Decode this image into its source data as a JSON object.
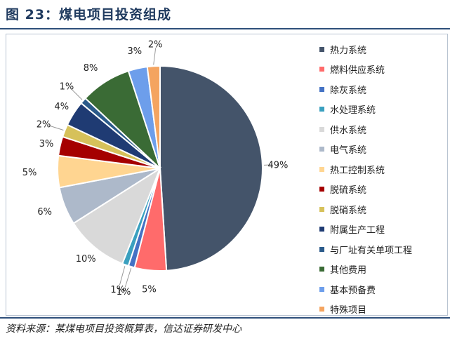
{
  "header": {
    "title": "图 23：煤电项目投资组成"
  },
  "footer": {
    "source": "资料来源：某煤电项目投资概算表，信达证券研发中心"
  },
  "chart_data": {
    "type": "pie",
    "title": "图 23：煤电项目投资组成",
    "legend_position": "right",
    "slices": [
      {
        "name": "热力系统",
        "value": 49,
        "label": "49%",
        "color": "#44546a"
      },
      {
        "name": "燃料供应系统",
        "value": 5,
        "label": "5%",
        "color": "#ff6b6b"
      },
      {
        "name": "除灰系统",
        "value": 1,
        "label": "1%",
        "color": "#4472c4"
      },
      {
        "name": "水处理系统",
        "value": 1,
        "label": "1%",
        "color": "#3aa0bf"
      },
      {
        "name": "供水系统",
        "value": 10,
        "label": "10%",
        "color": "#d9d9d9"
      },
      {
        "name": "电气系统",
        "value": 6,
        "label": "6%",
        "color": "#adb9ca"
      },
      {
        "name": "热工控制系统",
        "value": 5,
        "label": "5%",
        "color": "#ffd591"
      },
      {
        "name": "脱硫系统",
        "value": 3,
        "label": "3%",
        "color": "#a50000"
      },
      {
        "name": "脱硝系统",
        "value": 2,
        "label": "2%",
        "color": "#d6c15a"
      },
      {
        "name": "附属生产工程",
        "value": 4,
        "label": "4%",
        "color": "#1f3b73"
      },
      {
        "name": "与厂址有关单项工程",
        "value": 1,
        "label": "1%",
        "color": "#2b5a8a"
      },
      {
        "name": "其他费用",
        "value": 8,
        "label": "8%",
        "color": "#3a6b35"
      },
      {
        "name": "基本预备费",
        "value": 3,
        "label": "3%",
        "color": "#6d9eeb"
      },
      {
        "name": "特殊项目",
        "value": 2,
        "label": "2%",
        "color": "#f4a460"
      }
    ]
  }
}
